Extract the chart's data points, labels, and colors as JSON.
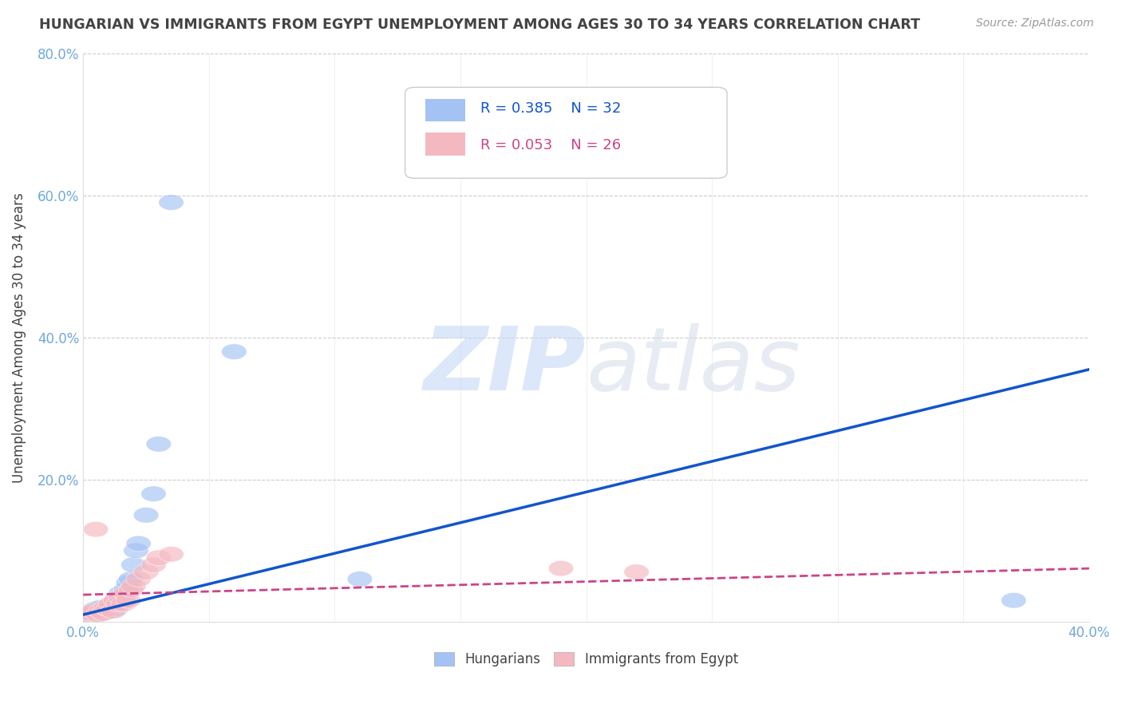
{
  "title": "HUNGARIAN VS IMMIGRANTS FROM EGYPT UNEMPLOYMENT AMONG AGES 30 TO 34 YEARS CORRELATION CHART",
  "source_text": "Source: ZipAtlas.com",
  "ylabel": "Unemployment Among Ages 30 to 34 years",
  "watermark_zip": "ZIP",
  "watermark_atlas": "atlas",
  "xlim": [
    0.0,
    0.4
  ],
  "ylim": [
    0.0,
    0.8
  ],
  "legend_r_blue": "R = 0.385",
  "legend_n_blue": "N = 32",
  "legend_r_pink": "R = 0.053",
  "legend_n_pink": "N = 26",
  "blue_color": "#a4c2f4",
  "pink_color": "#f4b8c1",
  "blue_line_color": "#1155cc",
  "pink_line_color": "#cc4488",
  "title_color": "#434343",
  "source_color": "#999999",
  "tick_color": "#6fa8dc",
  "blue_scatter_x": [
    0.002,
    0.003,
    0.004,
    0.005,
    0.005,
    0.006,
    0.007,
    0.007,
    0.008,
    0.009,
    0.01,
    0.011,
    0.012,
    0.013,
    0.013,
    0.014,
    0.015,
    0.015,
    0.016,
    0.017,
    0.018,
    0.019,
    0.02,
    0.021,
    0.022,
    0.025,
    0.028,
    0.03,
    0.035,
    0.06,
    0.11,
    0.37
  ],
  "blue_scatter_y": [
    0.01,
    0.012,
    0.015,
    0.01,
    0.018,
    0.012,
    0.015,
    0.02,
    0.012,
    0.018,
    0.015,
    0.02,
    0.025,
    0.018,
    0.03,
    0.025,
    0.035,
    0.04,
    0.03,
    0.045,
    0.055,
    0.06,
    0.08,
    0.1,
    0.11,
    0.15,
    0.18,
    0.25,
    0.59,
    0.38,
    0.06,
    0.03
  ],
  "pink_scatter_x": [
    0.002,
    0.003,
    0.004,
    0.005,
    0.006,
    0.007,
    0.008,
    0.009,
    0.01,
    0.011,
    0.012,
    0.013,
    0.014,
    0.015,
    0.016,
    0.017,
    0.018,
    0.019,
    0.02,
    0.022,
    0.025,
    0.028,
    0.03,
    0.035,
    0.19,
    0.22
  ],
  "pink_scatter_y": [
    0.01,
    0.012,
    0.015,
    0.13,
    0.01,
    0.015,
    0.012,
    0.02,
    0.018,
    0.025,
    0.015,
    0.03,
    0.025,
    0.035,
    0.025,
    0.04,
    0.03,
    0.045,
    0.05,
    0.06,
    0.07,
    0.08,
    0.09,
    0.095,
    0.075,
    0.07
  ],
  "blue_trend_x": [
    0.0,
    0.4
  ],
  "blue_trend_y": [
    0.01,
    0.355
  ],
  "pink_trend_x": [
    0.0,
    0.4
  ],
  "pink_trend_y": [
    0.038,
    0.075
  ],
  "background_color": "#ffffff",
  "grid_color": "#cccccc"
}
